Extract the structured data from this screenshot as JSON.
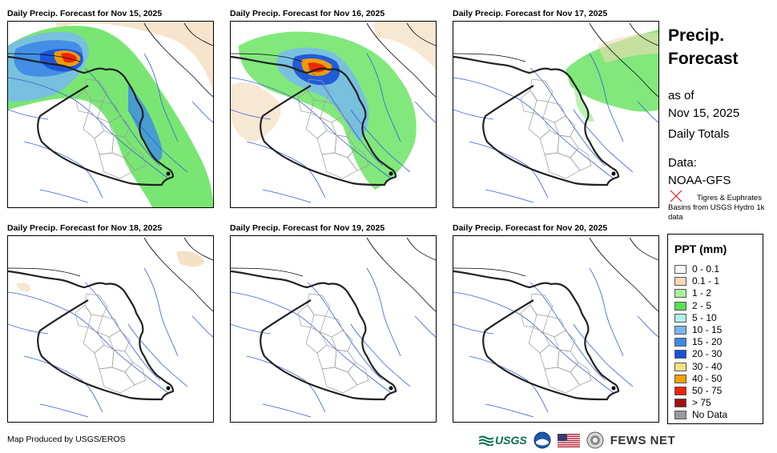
{
  "panels": [
    {
      "title": "Daily Precip. Forecast for Nov 15, 2025",
      "intensity": "heavy-north-west"
    },
    {
      "title": "Daily Precip. Forecast for Nov 16, 2025",
      "intensity": "heavy-north"
    },
    {
      "title": "Daily Precip. Forecast for Nov 17, 2025",
      "intensity": "light-north-east"
    },
    {
      "title": "Daily Precip. Forecast for Nov 18, 2025",
      "intensity": "trace"
    },
    {
      "title": "Daily Precip. Forecast for Nov 19, 2025",
      "intensity": "none"
    },
    {
      "title": "Daily Precip. Forecast for Nov 20, 2025",
      "intensity": "none"
    }
  ],
  "sidebar": {
    "title_line1": "Precip.",
    "title_line2": "Forecast",
    "as_of": "as of",
    "date": "Nov 15, 2025",
    "totals": "Daily Totals",
    "data_label": "Data:",
    "data_source": "NOAA-GFS",
    "basin_note": "Tigres & Euphrates Basins from USGS Hydro 1k data"
  },
  "legend": {
    "title": "PPT (mm)",
    "items": [
      {
        "label": "0 - 0.1",
        "color": "#ffffff"
      },
      {
        "label": "0.1 - 1",
        "color": "#f2d9b8"
      },
      {
        "label": "1 - 2",
        "color": "#a8f0a0"
      },
      {
        "label": "2 - 5",
        "color": "#58e050"
      },
      {
        "label": "5 - 10",
        "color": "#b0f0f0"
      },
      {
        "label": "10 - 15",
        "color": "#78b8f0"
      },
      {
        "label": "15 - 20",
        "color": "#3c8ae6"
      },
      {
        "label": "20 - 30",
        "color": "#1850d8"
      },
      {
        "label": "30 - 40",
        "color": "#f8e080"
      },
      {
        "label": "40 - 50",
        "color": "#f8a000"
      },
      {
        "label": "50 - 75",
        "color": "#f02000"
      },
      {
        "label": "> 75",
        "color": "#a01010"
      },
      {
        "label": "No Data",
        "color": "#999999"
      }
    ]
  },
  "footer": {
    "credit": "Map Produced by USGS/EROS",
    "usgs": "USGS",
    "fews": "FEWS NET"
  }
}
